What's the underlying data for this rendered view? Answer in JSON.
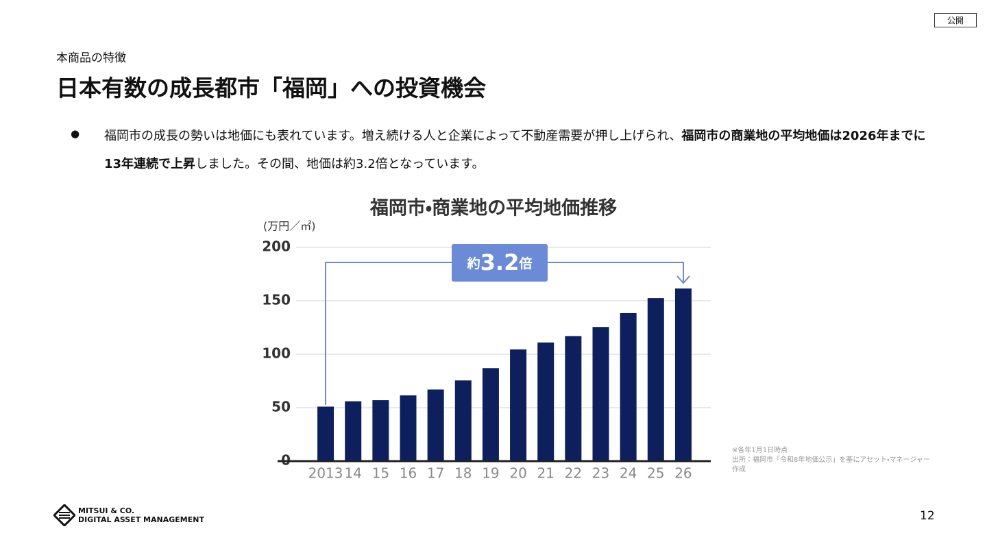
{
  "badge": "公開",
  "header": {
    "kicker": "本商品の特徴",
    "title": "日本有数の成長都市「福岡」への投資機会"
  },
  "body": {
    "bullets": [
      {
        "marker": "●",
        "segments": [
          {
            "text": "福岡市の成長の勢いは地価にも表れています。増え続ける人と企業によって不動産需要が押し上げられ、",
            "bold": false
          },
          {
            "text": "福岡市の商業地の平均地価は2026年までに13年連続で上昇",
            "bold": true
          },
          {
            "text": "しました。その間、地価は約3.2倍となっています。",
            "bold": false
          }
        ]
      }
    ]
  },
  "chart_data": {
    "type": "bar",
    "title": "福岡市・商業地の平均地価推移",
    "y_label": "(万円／㎡)",
    "categories": [
      "2013",
      "14",
      "15",
      "16",
      "17",
      "18",
      "19",
      "20",
      "21",
      "22",
      "23",
      "24",
      "25",
      "26"
    ],
    "values": [
      51,
      56,
      57,
      61.5,
      67,
      75.5,
      87,
      104.5,
      111,
      117,
      125.5,
      138.5,
      152.5,
      161.5
    ],
    "color": "#0d1f5c",
    "ylim": [
      0,
      200
    ],
    "yticks": [
      0,
      50,
      100,
      150,
      200
    ],
    "grid": true,
    "annotation": {
      "prefix": "約",
      "value": "3.2",
      "suffix": "倍"
    }
  },
  "notes": [
    "※各年1月1日時点",
    "出所：福岡市「令和8年地価公示」を基にアセット・マネージャー作成"
  ],
  "footer": {
    "logo_line1": "MITSUI & CO.",
    "logo_line2": "DIGITAL ASSET MANAGEMENT",
    "page_number": "12"
  }
}
